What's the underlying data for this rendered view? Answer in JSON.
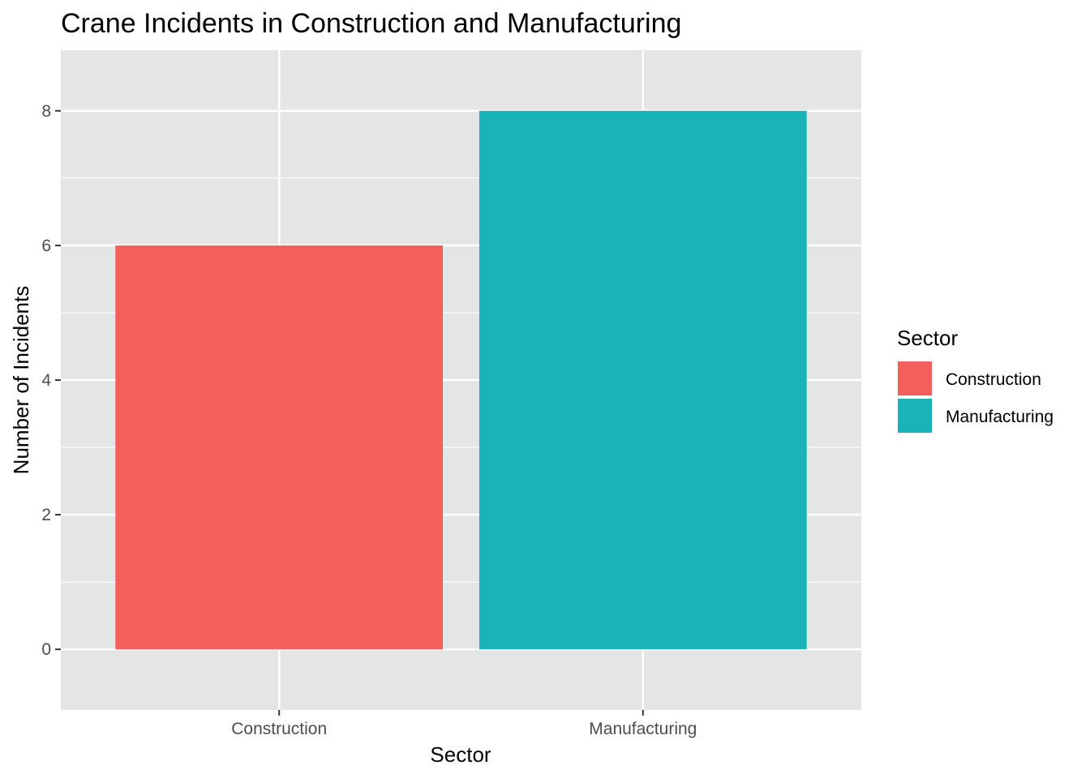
{
  "chart_data": {
    "type": "bar",
    "title": "Crane Incidents in Construction and Manufacturing",
    "xlabel": "Sector",
    "ylabel": "Number of Incidents",
    "categories": [
      "Construction",
      "Manufacturing"
    ],
    "values": [
      6,
      8
    ],
    "colors": [
      "#F35F5B",
      "#19B3B8"
    ],
    "ylim": [
      -0.9,
      8.9
    ],
    "yticks": [
      0,
      2,
      4,
      6,
      8
    ],
    "grid": true,
    "legend": {
      "title": "Sector",
      "position": "right",
      "entries": [
        "Construction",
        "Manufacturing"
      ]
    },
    "panel_background": "#E5E5E5",
    "grid_color": "#FFFFFF"
  }
}
